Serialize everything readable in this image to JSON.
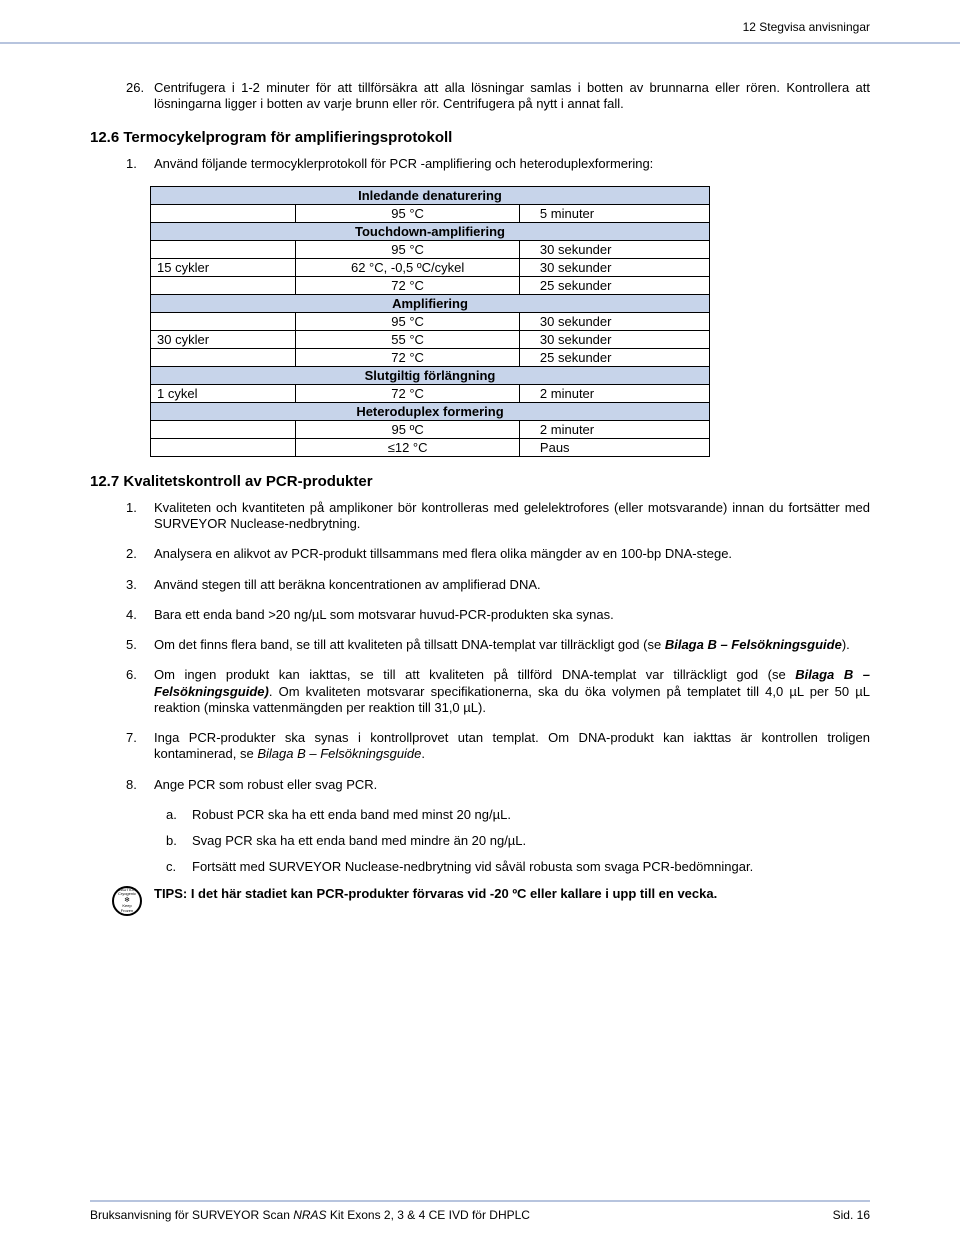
{
  "header": {
    "chapter": "12  Stegvisa anvisningar"
  },
  "intro_item": {
    "num": "26.",
    "text": "Centrifugera i 1-2 minuter för att tillförsäkra att alla lösningar samlas i botten av brunnarna eller rören. Kontrollera att lösningarna ligger i botten av varje brunn eller rör. Centrifugera på nytt i annat fall."
  },
  "sect126": {
    "title": "12.6 Termocykelprogram för amplifieringsprotokoll",
    "item1_num": "1.",
    "item1_text": "Använd följande termocyklerprotokoll för PCR -amplifiering och heteroduplexformering:"
  },
  "table": {
    "sections": [
      {
        "head": "Inledande denaturering",
        "rows": [
          {
            "c1": "",
            "c2": "95 °C",
            "c3": "5 minuter"
          }
        ]
      },
      {
        "head": "Touchdown-amplifiering",
        "rows": [
          {
            "c1": "",
            "c2": "95 °C",
            "c3": "30 sekunder"
          },
          {
            "c1": "15 cykler",
            "c2": "62 °C, -0,5 ºC/cykel",
            "c3": "30 sekunder"
          },
          {
            "c1": "",
            "c2": "72 °C",
            "c3": "25 sekunder"
          }
        ]
      },
      {
        "head": "Amplifiering",
        "rows": [
          {
            "c1": "",
            "c2": "95 °C",
            "c3": "30 sekunder"
          },
          {
            "c1": "30 cykler",
            "c2": "55 °C",
            "c3": "30 sekunder"
          },
          {
            "c1": "",
            "c2": "72 °C",
            "c3": "25 sekunder"
          }
        ]
      },
      {
        "head": "Slutgiltig förlängning",
        "rows": [
          {
            "c1": "1 cykel",
            "c2": "72 °C",
            "c3": "2 minuter"
          }
        ]
      },
      {
        "head": "Heteroduplex formering",
        "rows": [
          {
            "c1": "",
            "c2": "95 ºC",
            "c3": "2 minuter"
          },
          {
            "c1": "",
            "c2": "≤12 °C",
            "c3": "Paus"
          }
        ]
      }
    ]
  },
  "sect127": {
    "title": "12.7 Kvalitetskontroll av PCR-produkter",
    "items": [
      {
        "num": "1.",
        "text": "Kvaliteten och kvantiteten på amplikoner bör kontrolleras med gelelektrofores (eller motsvarande) innan du fortsätter med SURVEYOR Nuclease-nedbrytning."
      },
      {
        "num": "2.",
        "text": "Analysera en alikvot av PCR-produkt tillsammans med flera olika mängder av en 100-bp DNA-stege."
      },
      {
        "num": "3.",
        "text": "Använd stegen till att beräkna koncentrationen av amplifierad DNA."
      },
      {
        "num": "4.",
        "text": "Bara ett enda band >20 ng/µL som motsvarar huvud-PCR-produkten ska synas."
      },
      {
        "num": "5.",
        "pre": "Om det finns flera band, se till att kvaliteten på tillsatt DNA-templat var tillräckligt god (se ",
        "em": "Bilaga B – Felsökningsguide",
        "post": ")."
      },
      {
        "num": "6.",
        "pre": "Om ingen produkt kan iakttas, se till att kvaliteten på tillförd DNA-templat var tillräckligt god (se ",
        "em": "Bilaga B – Felsökningsguide)",
        "post": ". Om kvaliteten motsvarar specifikationerna, ska du öka volymen på templatet till 4,0 µL per 50 µL reaktion (minska vattenmängden per reaktion till 31,0 µL)."
      },
      {
        "num": "7.",
        "pre": "Inga PCR-produkter ska synas i kontrollprovet utan templat. Om DNA-produkt kan iakttas är kontrollen troligen kontaminerad, se ",
        "em2": "Bilaga B – Felsökningsguide",
        "post": "."
      },
      {
        "num": "8.",
        "text": "Ange PCR som robust eller svag PCR."
      }
    ],
    "sub": [
      {
        "num": "a.",
        "text": "Robust PCR ska ha ett enda band med minst 20 ng/µL."
      },
      {
        "num": "b.",
        "text": "Svag PCR ska ha ett enda band med mindre än 20 ng/µL."
      },
      {
        "num": "c.",
        "text": "Fortsätt med SURVEYOR Nuclease-nedbrytning vid såväl robusta som svaga PCR-bedömningar."
      }
    ]
  },
  "tips": {
    "label": "TIPS: I det här stadiet kan PCR-produkter förvaras vid -20 ºC eller kallare i upp till en vecka.",
    "icon_lines": [
      "CAUTION",
      "Cryogenic",
      "❄",
      "Keep",
      "Frozen"
    ]
  },
  "footer": {
    "left_pre": "Bruksanvisning för SURVEYOR Scan ",
    "left_em": "NRAS",
    "left_post": " Kit Exons 2, 3 & 4 CE IVD för DHPLC",
    "right": "Sid. 16"
  }
}
